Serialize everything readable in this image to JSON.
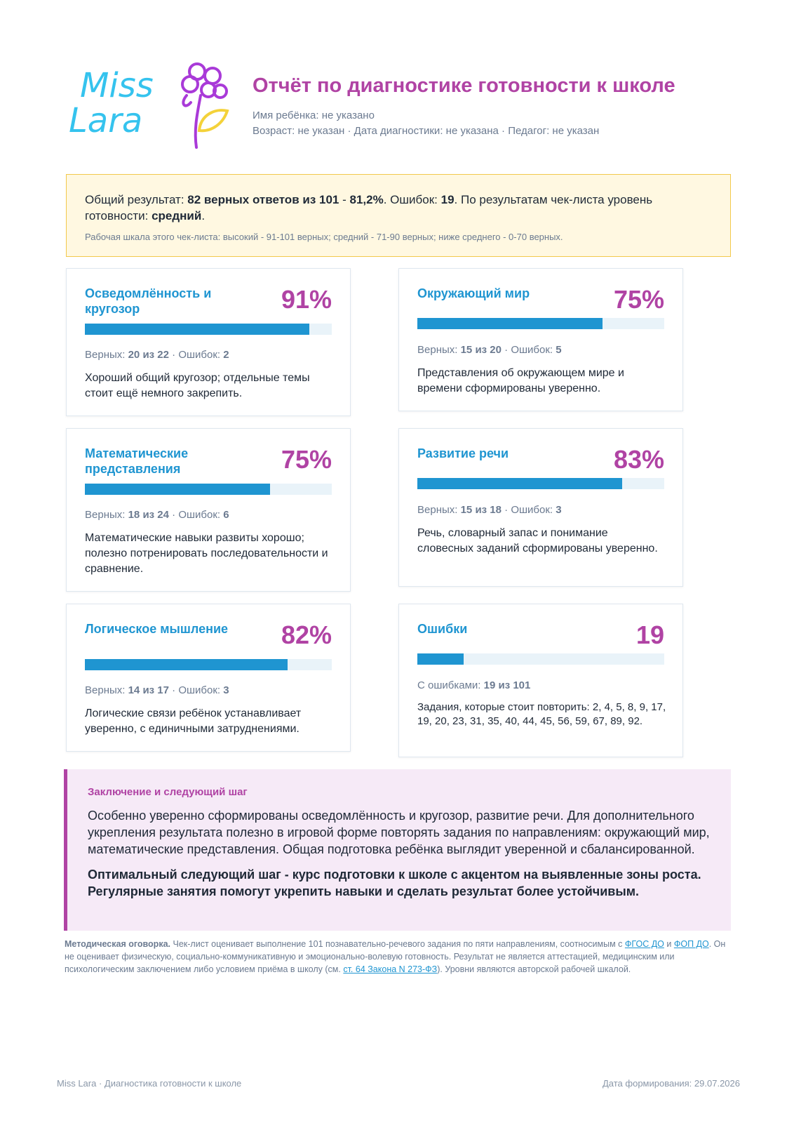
{
  "brand": {
    "logo_line1": "Miss",
    "logo_line2": "Lara"
  },
  "header": {
    "title": "Отчёт по диагностике готовности к школе",
    "child_label": "Имя ребёнка:",
    "child_value": "не указано",
    "age_label": "Возраст:",
    "age_value": "не указан",
    "date_label": "Дата диагностики:",
    "date_value": "не указана",
    "teacher_label": "Педагог:",
    "teacher_value": "не указан",
    "sep": "·"
  },
  "summary": {
    "prefix": "Общий результат:",
    "correct_text": "82 верных ответов из 101",
    "dash": "-",
    "percent": "81,2%",
    "errors_label": "Ошибок:",
    "errors_value": "19",
    "level_prefix": "По результатам чек-листа уровень готовности:",
    "level_value": "средний",
    "scale_note": "Рабочая шкала этого чек-листа: высокий - 91-101 верных; средний - 71-90 верных; ниже среднего - 0-70 верных."
  },
  "cards": [
    {
      "title": "Осведомлённость и кругозор",
      "value": "91%",
      "progress": 91,
      "correct_label": "Верных:",
      "correct": "20 из 22",
      "errors_label": "Ошибок:",
      "errors": "2",
      "description": "Хороший общий кругозор; отдельные темы стоит ещё немного закрепить."
    },
    {
      "title": "Окружающий мир",
      "value": "75%",
      "progress": 75,
      "correct_label": "Верных:",
      "correct": "15 из 20",
      "errors_label": "Ошибок:",
      "errors": "5",
      "description": "Представления об окружающем мире и времени сформированы уверенно."
    },
    {
      "title": "Математические представления",
      "value": "75%",
      "progress": 75,
      "correct_label": "Верных:",
      "correct": "18 из 24",
      "errors_label": "Ошибок:",
      "errors": "6",
      "description": "Математические навыки развиты хорошо; полезно потренировать последовательности и сравнение."
    },
    {
      "title": "Развитие речи",
      "value": "83%",
      "progress": 83,
      "correct_label": "Верных:",
      "correct": "15 из 18",
      "errors_label": "Ошибок:",
      "errors": "3",
      "description": "Речь, словарный запас и понимание словесных заданий сформированы уверенно."
    },
    {
      "title": "Логическое мышление",
      "value": "82%",
      "progress": 82,
      "correct_label": "Верных:",
      "correct": "14 из 17",
      "errors_label": "Ошибок:",
      "errors": "3",
      "description": "Логические связи ребёнок устанавливает уверенно, с единичными затруднениями."
    },
    {
      "title": "Ошибки",
      "value": "19",
      "progress": 18.8,
      "errors_with_label": "С ошибками:",
      "errors_with": "19 из 101",
      "description": "Задания, которые стоит повторить: 2, 4, 5, 8, 9, 17, 19, 20, 23, 31, 35, 40, 44, 45, 56, 59, 67, 89, 92."
    }
  ],
  "conclusion": {
    "title": "Заключение и следующий шаг",
    "text": "Особенно уверенно сформированы осведомлённость и кругозор, развитие речи. Для дополнительного укрепления результата полезно в игровой форме повторять задания по направлениям: окружающий мир, математические представления. Общая подготовка ребёнка выглядит уверенной и сбалансированной.",
    "next_step": "Оптимальный следующий шаг - курс подготовки к школе с акцентом на выявленные зоны роста. Регулярные занятия помогут укрепить навыки и сделать результат более устойчивым."
  },
  "disclaimer": {
    "lead": "Методическая оговорка.",
    "part1": "Чек-лист оценивает выполнение 101 познавательно-речевого задания по пяти направлениям, соотносимым с",
    "link1": "ФГОС ДО",
    "and": "и",
    "link2": "ФОП ДО",
    "part2": ". Он не оценивает физическую, социально-коммуникативную и эмоционально-волевую готовность. Результат не является аттестацией, медицинским или психологическим заключением либо условием приёма в школу (см.",
    "link3": "ст. 64 Закона N 273-ФЗ",
    "part3": "). Уровни являются авторской рабочей шкалой."
  },
  "footer": {
    "left": "Miss Lara · Диагностика готовности к школе",
    "right_label": "Дата формирования:",
    "right_value": "29.07.2026"
  },
  "colors": {
    "accent_purple": "#b043a4",
    "accent_blue": "#1f95d1",
    "logo_blue": "#35c3ee",
    "logo_yellow": "#f4d23a",
    "summary_bg": "#fff8e1",
    "conclusion_bg": "#f6eaf7"
  }
}
